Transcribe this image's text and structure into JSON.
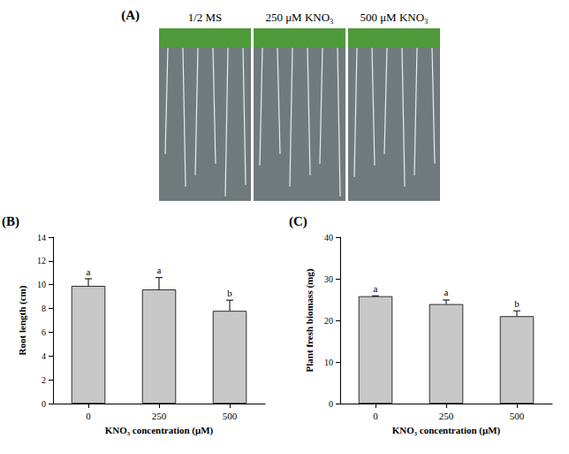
{
  "photo_panel": {
    "panel": "(A)",
    "labels": [
      "1/2 MS",
      "250 μM KNO₃",
      "500 μM KNO₃"
    ]
  },
  "chart_data": [
    {
      "panel": "(B)",
      "type": "bar",
      "categories": [
        "0",
        "250",
        "500"
      ],
      "values": [
        9.9,
        9.6,
        7.8
      ],
      "errors": [
        0.6,
        1.0,
        0.9
      ],
      "annotations": [
        "a",
        "a",
        "b"
      ],
      "x_label": "KNO₃ concentration (μM)",
      "y_label": "Root length (cm)",
      "ylim": [
        0,
        14
      ],
      "yticks": [
        0,
        2,
        4,
        6,
        8,
        10,
        12,
        14
      ],
      "color": "#c8c8c8",
      "grid": false
    },
    {
      "panel": "(C)",
      "type": "bar",
      "categories": [
        "0",
        "250",
        "500"
      ],
      "values": [
        25.8,
        23.9,
        21.0
      ],
      "errors": [
        0.1,
        1.0,
        1.3
      ],
      "annotations": [
        "a",
        "a",
        "b"
      ],
      "x_label": "KNO₃ concentration (μM)",
      "y_label": "Plant fresh biomass (mg)",
      "ylim": [
        0,
        40
      ],
      "yticks": [
        0,
        10,
        20,
        30,
        40
      ],
      "color": "#c8c8c8",
      "grid": false
    }
  ]
}
